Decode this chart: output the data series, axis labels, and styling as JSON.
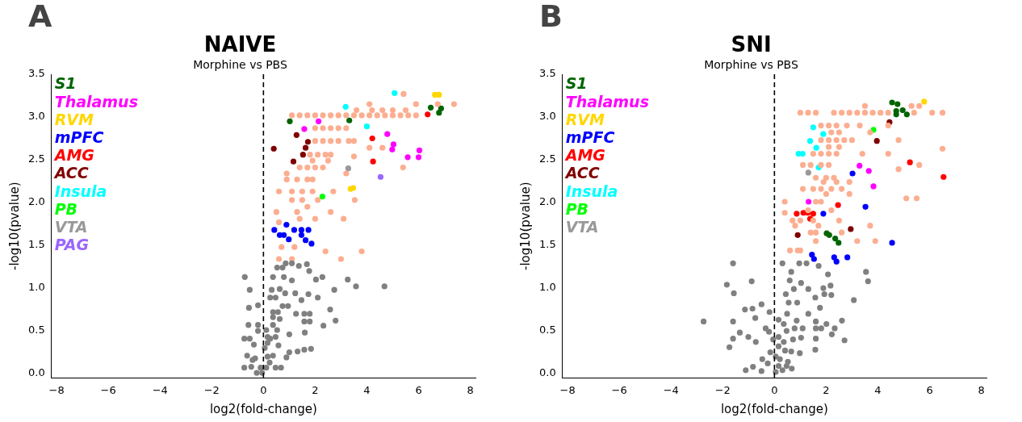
{
  "chart_data": [
    {
      "type": "scatter",
      "title": "NAIVE",
      "subtitle": "Morphine vs PBS",
      "xlabel": "log2(fold-change)",
      "ylabel": "-log10(pvalue)",
      "annotations": [
        "A"
      ],
      "xlim": [
        -8.2,
        8.2
      ],
      "ylim": [
        -0.05,
        3.5
      ],
      "xticks": [
        {
          "value": -8,
          "label": "−8"
        },
        {
          "value": -6,
          "label": "−6"
        },
        {
          "value": -4,
          "label": "−4"
        },
        {
          "value": -2,
          "label": "−2"
        },
        0,
        2,
        4,
        6,
        8
      ],
      "yticks": [
        {
          "value": 0,
          "label": "0.0"
        },
        {
          "value": 0.5,
          "label": "0.5"
        },
        {
          "value": 1,
          "label": "1.0"
        },
        {
          "value": 1.5,
          "label": "1.5"
        },
        {
          "value": 2,
          "label": "2.0"
        },
        {
          "value": 2.5,
          "label": "2.5"
        },
        {
          "value": 3,
          "label": "3.0"
        },
        {
          "value": 3.5,
          "label": "3.5"
        }
      ],
      "legend": "top left",
      "marker": "circle",
      "ref_lines": [
        {
          "axis": "x",
          "value": 0,
          "color": "#000000",
          "line_style": "dashed"
        }
      ],
      "series": [
        {
          "color": "#808080",
          "x": [
            0.86,
            1.1,
            1.37,
            1.68,
            1.77,
            0.53,
            0.74,
            -0.72,
            0.37,
            0.79,
            1.1,
            2.03,
            2.28,
            3.26,
            3.58,
            4.68,
            -0.53,
            0.32,
            0.63,
            0.84,
            1.23,
            1.74,
            2.74,
            2.1,
            0.26,
            0.47,
            1.47,
            -0.21,
            -0.56,
            0.74,
            0.95,
            2.58,
            0.37,
            0.56,
            1.26,
            1.58,
            1.79,
            0.37,
            0.63,
            1.58,
            1.79,
            2.79,
            2.32,
            -0.58,
            -0.21,
            0.37,
            0.11,
            -0.21,
            0.53,
            1.0,
            1.6,
            -0.74,
            -0.53,
            0.16,
            0.47,
            -0.37,
            0.58,
            1.84,
            1.58,
            1.32,
            1.0,
            -0.63,
            -0.32,
            0.16,
            0.37,
            0.89,
            -0.42,
            0.24,
            -0.74,
            -0.47,
            -0.11,
            0.11,
            0.47,
            0.68,
            -0.26,
            -0.05,
            0.05,
            0.16,
            0.26
          ],
          "values": [
            1.29,
            1.29,
            1.26,
            1.28,
            1.2,
            1.24,
            1.24,
            1.13,
            1.13,
            1.13,
            1.09,
            1.1,
            1.13,
            1.1,
            1.02,
            1.02,
            0.98,
            0.98,
            0.99,
            0.94,
            0.94,
            0.93,
            0.98,
            0.89,
            0.89,
            0.89,
            0.86,
            0.8,
            0.77,
            0.79,
            0.79,
            0.75,
            0.72,
            0.72,
            0.7,
            0.7,
            0.7,
            0.66,
            0.64,
            0.61,
            0.61,
            0.62,
            0.56,
            0.57,
            0.57,
            0.57,
            0.51,
            0.5,
            0.51,
            0.46,
            0.48,
            0.41,
            0.41,
            0.43,
            0.43,
            0.34,
            0.33,
            0.29,
            0.28,
            0.26,
            0.25,
            0.21,
            0.18,
            0.2,
            0.21,
            0.19,
            0.16,
            0.13,
            0.07,
            0.08,
            0.07,
            0.07,
            0.07,
            0.07,
            0.01,
            0.01,
            0.3,
            0.36,
            0.41
          ]
        },
        {
          "color": "#fcae91",
          "x": [
            1.1,
            1.4,
            1.7,
            2.0,
            2.3,
            2.6,
            2.9,
            3.2,
            3.5,
            3.8,
            4.1,
            4.4,
            4.7,
            5.0,
            5.3,
            5.6,
            5.9,
            3.6,
            4.2,
            4.6,
            5.0,
            5.5,
            4.1,
            5.9,
            7.37,
            6.74,
            5.42,
            2.0,
            2.3,
            2.6,
            2.9,
            3.2,
            2.0,
            2.3,
            2.6,
            2.9,
            3.3,
            3.5,
            4.1,
            4.6,
            1.8,
            2.1,
            2.4,
            2.6,
            3.5,
            1.9,
            2.5,
            1.4,
            1.7,
            2.0,
            2.3,
            5.4,
            0.9,
            3.2,
            0.9,
            1.3,
            1.7,
            1.9,
            0.6,
            1.1,
            1.5,
            1.9,
            2.7,
            1.1,
            1.5,
            2.1,
            3.53,
            1.7,
            0.5,
            1.3,
            2.6,
            1.4,
            2.0,
            3.1,
            0.6,
            0.7,
            1.2,
            2.4,
            3.8,
            0.6,
            1.1,
            3.0
          ],
          "values": [
            3.02,
            3.02,
            3.02,
            3.02,
            3.02,
            3.02,
            3.02,
            3.02,
            3.02,
            3.02,
            3.02,
            3.02,
            3.02,
            3.02,
            3.02,
            3.02,
            3.02,
            3.08,
            3.08,
            3.08,
            3.08,
            3.08,
            3.15,
            3.15,
            3.15,
            3.15,
            3.27,
            2.87,
            2.87,
            2.87,
            2.87,
            2.87,
            2.72,
            2.72,
            2.72,
            2.72,
            2.72,
            2.72,
            2.64,
            2.64,
            2.56,
            2.56,
            2.56,
            2.56,
            2.54,
            2.49,
            2.49,
            2.41,
            2.41,
            2.41,
            2.41,
            2.41,
            2.34,
            2.34,
            2.27,
            2.27,
            2.27,
            2.27,
            2.13,
            2.13,
            2.13,
            2.13,
            2.13,
            2.03,
            2.03,
            2.03,
            2.03,
            1.95,
            1.89,
            1.89,
            1.89,
            1.81,
            1.81,
            1.81,
            1.77,
            1.48,
            1.48,
            1.43,
            1.43,
            1.34,
            1.34,
            1.34
          ]
        },
        {
          "name": "S1",
          "color": "#006400",
          "x": [
            6.47,
            6.87,
            6.79,
            1.02,
            3.32
          ],
          "values": [
            3.11,
            3.1,
            3.05,
            2.95,
            2.96
          ]
        },
        {
          "name": "Thalamus",
          "color": "#ff00ff",
          "x": [
            2.13,
            1.58,
            4.79,
            5.03,
            4.98,
            6.03,
            5.58,
            6.0
          ],
          "values": [
            2.95,
            2.86,
            2.8,
            2.68,
            2.62,
            2.61,
            2.53,
            2.53
          ]
        },
        {
          "name": "RVM",
          "color": "#ffd700",
          "x": [
            6.63,
            6.79,
            3.37,
            3.47
          ],
          "values": [
            3.26,
            3.26,
            2.16,
            2.17
          ]
        },
        {
          "name": "mPFC",
          "color": "#0000ff",
          "x": [
            0.42,
            0.89,
            0.79,
            0.98,
            1.19,
            1.47,
            1.74,
            1.47,
            0.63,
            1.63,
            1.86
          ],
          "values": [
            1.68,
            1.74,
            1.62,
            1.57,
            1.68,
            1.68,
            1.68,
            1.62,
            1.62,
            1.56,
            1.52
          ]
        },
        {
          "name": "AMG",
          "color": "#ff0000",
          "x": [
            6.35,
            4.21,
            4.24
          ],
          "values": [
            3.03,
            2.75,
            2.48
          ]
        },
        {
          "name": "ACC",
          "color": "#800000",
          "x": [
            1.28,
            1.72,
            0.4,
            1.63,
            1.53,
            1.16
          ],
          "values": [
            2.79,
            2.71,
            2.63,
            2.64,
            2.56,
            2.48
          ]
        },
        {
          "name": "Insula",
          "color": "#00ffff",
          "x": [
            5.07,
            3.18,
            4.0
          ],
          "values": [
            3.28,
            3.12,
            2.89
          ]
        },
        {
          "name": "PB",
          "color": "#00ff00",
          "x": [
            2.28
          ],
          "values": [
            2.07
          ]
        },
        {
          "name": "VTA",
          "color": "#999999",
          "x": [
            3.28
          ],
          "values": [
            2.4
          ]
        },
        {
          "name": "PAG",
          "color": "#9966ff",
          "x": [
            4.53
          ],
          "values": [
            2.3
          ]
        }
      ]
    },
    {
      "type": "scatter",
      "title": "SNI",
      "subtitle": "Morphine vs PBS",
      "xlabel": "log2(fold-change)",
      "ylabel": "-log10(pvalue)",
      "annotations": [
        "B"
      ],
      "xlim": [
        -8.2,
        8.2
      ],
      "ylim": [
        -0.05,
        3.5
      ],
      "xticks": [
        {
          "value": -8,
          "label": "−8"
        },
        {
          "value": -6,
          "label": "−6"
        },
        {
          "value": -4,
          "label": "−4"
        },
        {
          "value": -2,
          "label": "−2"
        },
        0,
        2,
        4,
        6,
        8
      ],
      "yticks": [
        {
          "value": 0,
          "label": "0.0"
        },
        {
          "value": 0.5,
          "label": "0.5"
        },
        {
          "value": 1,
          "label": "1.0"
        },
        {
          "value": 1.5,
          "label": "1.5"
        },
        {
          "value": 2,
          "label": "2.0"
        },
        {
          "value": 2.5,
          "label": "2.5"
        },
        {
          "value": 3,
          "label": "3.0"
        },
        {
          "value": 3.5,
          "label": "3.5"
        }
      ],
      "legend": "top left",
      "marker": "circle",
      "ref_lines": [
        {
          "axis": "x",
          "value": 0,
          "color": "#000000",
          "line_style": "dashed"
        }
      ],
      "series": [
        {
          "color": "#808080",
          "x": [
            -1.6,
            -1.84,
            -1.57,
            -0.88,
            -2.74,
            -1.6,
            -1.34,
            -1.6,
            -1.74,
            -1.01,
            -0.72,
            -1.14,
            -0.85,
            -0.5,
            -0.74,
            -0.19,
            -0.34,
            -0.21,
            -1.11,
            -0.83,
            -0.5,
            -0.47,
            -0.26,
            -0.16,
            -0.05,
            0.31,
            0.65,
            0.96,
            1.24,
            1.71,
            2.07,
            0.59,
            1.03,
            0.75,
            1.31,
            1.89,
            2.17,
            3.54,
            3.62,
            3.07,
            0.44,
            0.55,
            0.88,
            1.58,
            1.93,
            2.2,
            1.76,
            0.49,
            0.36,
            0.86,
            1.31,
            1.6,
            2.01,
            2.61,
            2.33,
            0.47,
            0.78,
            1.09,
            1.6,
            1.81,
            2.22,
            1.6,
            2.71,
            0.16,
            0.36,
            0.72,
            1.03,
            0.16,
            0.41,
            0.65,
            0.98,
            1.58,
            0.21,
            0.52,
            0.16,
            0.67,
            0.05,
            0.31,
            0.05,
            0.16,
            0.47
          ],
          "values": [
            1.29,
            1.04,
            0.94,
            1.08,
            0.61,
            0.61,
            0.48,
            0.41,
            0.31,
            0.43,
            0.37,
            0.75,
            0.76,
            0.81,
            0.65,
            0.72,
            0.53,
            0.49,
            0.04,
            0.08,
            0.03,
            0.17,
            0.12,
            0.25,
            0.4,
            1.29,
            1.19,
            1.29,
            1.29,
            1.26,
            1.16,
            1.09,
            1.06,
            0.99,
            0.99,
            1.0,
            1.03,
            1.19,
            1.08,
            0.86,
            0.93,
            0.83,
            0.83,
            0.89,
            0.93,
            0.92,
            0.77,
            0.7,
            0.58,
            0.62,
            0.7,
            0.61,
            0.58,
            0.62,
            0.53,
            0.5,
            0.53,
            0.53,
            0.53,
            0.53,
            0.46,
            0.41,
            0.39,
            0.43,
            0.37,
            0.4,
            0.42,
            0.32,
            0.27,
            0.26,
            0.24,
            0.28,
            0.17,
            0.14,
            0.09,
            0.06,
            0.02,
            0.04,
            0.2,
            0.63,
            0.09
          ]
        },
        {
          "color": "#fcae91",
          "x": [
            1.0,
            1.3,
            1.6,
            2.3,
            2.6,
            2.9,
            3.2,
            3.5,
            3.8,
            4.1,
            4.4,
            5.4,
            6.1,
            6.5,
            3.5,
            5.3,
            5.6,
            1.8,
            2.1,
            2.4,
            2.8,
            3.3,
            4.4,
            2.2,
            2.5,
            3.7,
            1.8,
            2.1,
            2.4,
            2.7,
            3.0,
            4.8,
            2.1,
            2.5,
            6.5,
            1.5,
            1.8,
            2.1,
            2.4,
            3.4,
            4.4,
            1.1,
            1.4,
            1.8,
            2.1,
            5.6,
            4.8,
            1.6,
            2.0,
            2.3,
            1.9,
            2.4,
            2.9,
            1.1,
            1.5,
            1.8,
            2.2,
            2.6,
            2.0,
            2.9,
            5.1,
            5.5,
            0.4,
            1.6,
            1.8,
            1.3,
            2.2,
            0.4,
            0.7,
            1.0,
            1.5,
            2.5,
            0.8,
            1.7,
            3.7,
            1.4,
            1.6,
            2.6,
            1.6,
            3.2,
            3.9,
            0.6,
            0.9,
            1.0
          ],
          "values": [
            3.05,
            3.05,
            3.05,
            3.05,
            3.05,
            3.05,
            3.05,
            3.05,
            3.05,
            3.05,
            3.05,
            3.05,
            3.05,
            3.05,
            3.13,
            3.13,
            3.13,
            2.9,
            2.9,
            2.9,
            2.9,
            2.9,
            2.9,
            2.82,
            2.82,
            2.82,
            2.73,
            2.73,
            2.73,
            2.73,
            2.73,
            2.73,
            2.65,
            2.65,
            2.63,
            2.57,
            2.57,
            2.57,
            2.57,
            2.57,
            2.57,
            2.44,
            2.44,
            2.44,
            2.44,
            2.44,
            2.39,
            2.29,
            2.29,
            2.29,
            2.24,
            2.24,
            2.24,
            2.16,
            2.16,
            2.16,
            2.16,
            2.16,
            2.1,
            2.1,
            2.05,
            2.05,
            2.01,
            2.01,
            2.01,
            1.91,
            1.91,
            1.88,
            1.79,
            1.79,
            1.79,
            1.79,
            1.73,
            1.73,
            1.73,
            1.65,
            1.65,
            1.65,
            1.55,
            1.55,
            1.55,
            1.44,
            1.44,
            1.44
          ]
        },
        {
          "name": "S1",
          "color": "#006400",
          "x": [
            4.55,
            4.76,
            4.71,
            5.12,
            4.96,
            4.71,
            2.02,
            2.12,
            2.35,
            2.48
          ],
          "values": [
            3.17,
            3.15,
            3.07,
            3.03,
            3.08,
            3.03,
            1.64,
            1.62,
            1.58,
            1.53
          ]
        },
        {
          "name": "Thalamus",
          "color": "#ff00ff",
          "x": [
            3.29,
            3.65,
            3.83,
            1.32
          ],
          "values": [
            2.43,
            2.37,
            2.19,
            2.01
          ]
        },
        {
          "name": "RVM",
          "color": "#ffd700",
          "x": [
            5.79
          ],
          "values": [
            3.18
          ]
        },
        {
          "name": "mPFC",
          "color": "#0000ff",
          "x": [
            3.02,
            3.52,
            1.89,
            4.55,
            1.45,
            1.53,
            2.31,
            2.4,
            2.82
          ],
          "values": [
            2.34,
            1.95,
            1.87,
            1.53,
            1.39,
            1.34,
            1.36,
            1.31,
            1.36
          ]
        },
        {
          "name": "AMG",
          "color": "#ff0000",
          "x": [
            5.24,
            6.54,
            2.46,
            0.86,
            1.12,
            1.29,
            1.5,
            1.38
          ],
          "values": [
            2.47,
            2.3,
            1.97,
            1.87,
            1.88,
            1.88,
            1.87,
            1.81
          ]
        },
        {
          "name": "ACC",
          "color": "#800000",
          "x": [
            4.45,
            3.96,
            2.95,
            0.9
          ],
          "values": [
            2.94,
            2.72,
            1.69,
            1.62
          ]
        },
        {
          "name": "Insula",
          "color": "#00ffff",
          "x": [
            1.5,
            1.89,
            1.38,
            1.62,
            0.93,
            1.09,
            1.71
          ],
          "values": [
            2.88,
            2.8,
            2.72,
            2.64,
            2.57,
            2.57,
            2.41
          ]
        },
        {
          "name": "PB",
          "color": "#00ff00",
          "x": [
            3.83
          ],
          "values": [
            2.85
          ]
        },
        {
          "name": "VTA",
          "color": "#999999",
          "x": [
            1.31
          ],
          "values": [
            2.35
          ]
        }
      ]
    }
  ]
}
